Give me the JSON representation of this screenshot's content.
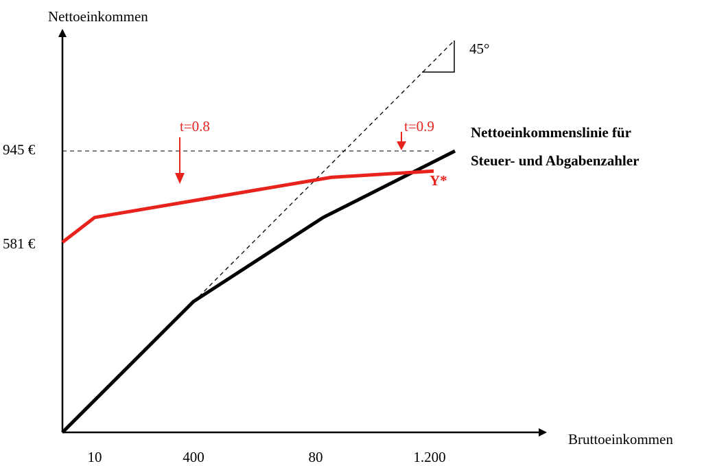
{
  "chart_data": {
    "type": "line",
    "title": "",
    "xlabel": "Bruttoeinkommen",
    "ylabel": "Nettoeinkommen",
    "x_tick_labels": [
      "10",
      "400",
      "80",
      "1.200"
    ],
    "y_tick_labels": [
      "945 €",
      "581 €"
    ],
    "series": [
      {
        "name": "Nettoeinkommenslinie für Steuer- und Abgabenzahler",
        "color": "#000000",
        "points": [
          [
            0,
            0
          ],
          [
            400,
            400
          ],
          [
            800,
            680
          ],
          [
            1270,
            945
          ]
        ]
      },
      {
        "name": "",
        "color": "#e8221d",
        "points": [
          [
            0,
            581
          ],
          [
            100,
            680
          ],
          [
            830,
            840
          ],
          [
            1210,
            865
          ]
        ]
      }
    ],
    "reference_lines": [
      {
        "type": "45-degree",
        "color": "#000000",
        "style": "dashed",
        "label": "45°"
      },
      {
        "type": "horizontal",
        "y_label": "945 €",
        "style": "dashed"
      }
    ],
    "annotations": {
      "t1": "t=0.8",
      "t2": "t=0.9",
      "ystar": "Y*",
      "line_label_1": "Nettoeinkommenslinie für",
      "line_label_2": "Steuer- und Abgabenzahler",
      "angle": "45°"
    },
    "colors": {
      "net_income": "#000000",
      "transfer": "#e8221d"
    },
    "grid": false
  }
}
